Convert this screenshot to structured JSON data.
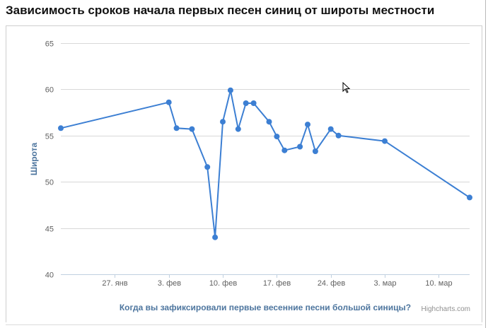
{
  "page": {
    "title": "Зависимость сроков начала первых песен синиц от широты местности"
  },
  "chart_data": {
    "type": "line",
    "title": "Зависимость сроков начала первых песен синиц от широты местности",
    "xlabel": "Когда вы зафиксировали первые весенние песни большой синицы?",
    "ylabel": "Широта",
    "credits": "Highcharts.com",
    "ylim": [
      40,
      65
    ],
    "yticks": [
      40,
      45,
      50,
      55,
      60,
      65
    ],
    "xlim": [
      "2014-01-20",
      "2014-03-14"
    ],
    "xticks": [
      {
        "date": "2014-01-27",
        "label": "27. янв"
      },
      {
        "date": "2014-02-03",
        "label": "3. фев"
      },
      {
        "date": "2014-02-10",
        "label": "10. фев"
      },
      {
        "date": "2014-02-17",
        "label": "17. фев"
      },
      {
        "date": "2014-02-24",
        "label": "24. фев"
      },
      {
        "date": "2014-03-03",
        "label": "3. мар"
      },
      {
        "date": "2014-03-10",
        "label": "10. мар"
      }
    ],
    "grid": true,
    "color": "#3c7fd3",
    "series": [
      {
        "points": [
          {
            "x": "2014-01-20",
            "y": 55.8
          },
          {
            "x": "2014-02-03",
            "y": 58.6
          },
          {
            "x": "2014-02-04",
            "y": 55.8
          },
          {
            "x": "2014-02-06",
            "y": 55.7
          },
          {
            "x": "2014-02-08",
            "y": 51.6
          },
          {
            "x": "2014-02-09",
            "y": 44.0
          },
          {
            "x": "2014-02-10",
            "y": 56.5
          },
          {
            "x": "2014-02-11",
            "y": 59.9
          },
          {
            "x": "2014-02-12",
            "y": 55.7
          },
          {
            "x": "2014-02-13",
            "y": 58.5
          },
          {
            "x": "2014-02-14",
            "y": 58.5
          },
          {
            "x": "2014-02-16",
            "y": 56.5
          },
          {
            "x": "2014-02-17",
            "y": 54.9
          },
          {
            "x": "2014-02-18",
            "y": 53.4
          },
          {
            "x": "2014-02-20",
            "y": 53.8
          },
          {
            "x": "2014-02-21",
            "y": 56.2
          },
          {
            "x": "2014-02-22",
            "y": 53.3
          },
          {
            "x": "2014-02-24",
            "y": 55.7
          },
          {
            "x": "2014-02-25",
            "y": 55.0
          },
          {
            "x": "2014-03-03",
            "y": 54.4
          },
          {
            "x": "2014-03-14",
            "y": 48.3
          }
        ]
      }
    ]
  }
}
